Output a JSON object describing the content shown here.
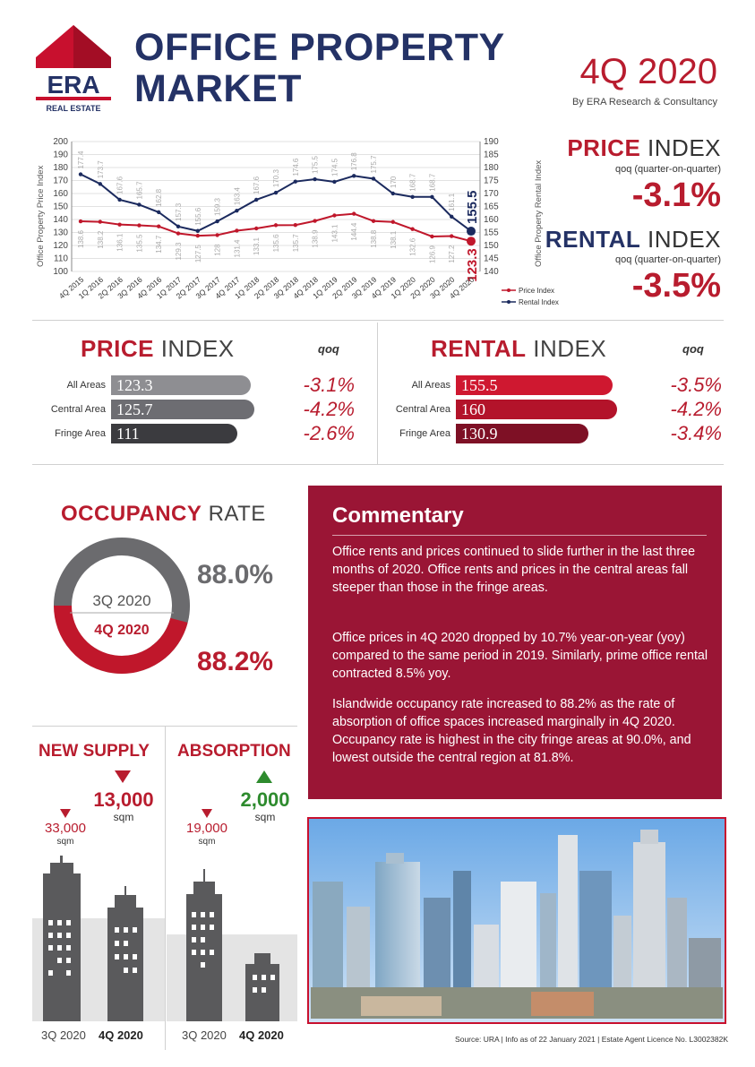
{
  "header": {
    "logo_text": "ERA",
    "logo_subtext": "REAL ESTATE",
    "title_line1": "OFFICE PROPERTY",
    "title_line2": "MARKET",
    "quarter": "4Q 2020",
    "byline": "By ERA Research & Consultancy"
  },
  "summary": {
    "price_head_bold": "PRICE",
    "price_head_rest": " INDEX",
    "price_sub": "qoq (quarter-on-quarter)",
    "price_value": "-3.1%",
    "rental_head_bold": "RENTAL",
    "rental_head_rest": " INDEX",
    "rental_sub": "qoq (quarter-on-quarter)",
    "rental_value": "-3.5%"
  },
  "chart_data": {
    "type": "line",
    "categories": [
      "4Q 2015",
      "1Q 2016",
      "2Q 2016",
      "3Q 2016",
      "4Q 2016",
      "1Q 2017",
      "2Q 2017",
      "3Q 2017",
      "4Q 2017",
      "1Q 2018",
      "2Q 2018",
      "3Q 2018",
      "4Q 2018",
      "1Q 2019",
      "2Q 2019",
      "3Q 2019",
      "4Q 2019",
      "1Q 2020",
      "2Q 2020",
      "3Q 2020",
      "4Q 2020"
    ],
    "series": [
      {
        "name": "Price Index",
        "axis": "left",
        "color": "#c0172b",
        "values": [
          138.6,
          138.2,
          136.1,
          135.5,
          134.7,
          129.3,
          127.5,
          128,
          131.4,
          133.1,
          135.6,
          135.7,
          138.9,
          143.1,
          144.4,
          138.8,
          138.1,
          132.6,
          126.9,
          127.2,
          123.3
        ]
      },
      {
        "name": "Rental Index",
        "axis": "right",
        "color": "#1b2a5e",
        "values": [
          177.4,
          173.7,
          167.6,
          165.7,
          162.8,
          157.3,
          155.6,
          159.3,
          163.4,
          167.6,
          170.3,
          174.6,
          175.5,
          174.5,
          176.8,
          175.7,
          170,
          168.7,
          168.7,
          161.1,
          155.5
        ]
      }
    ],
    "ylabel_left": "Office Property Price Index",
    "ylabel_right": "Office Property Rental Index",
    "ylim_left": [
      100,
      200
    ],
    "ylim_right": [
      140,
      190
    ],
    "yticks_left": [
      "100",
      "110",
      "120",
      "130",
      "140",
      "150",
      "160",
      "170",
      "180",
      "190",
      "200"
    ],
    "yticks_right": [
      "140",
      "145",
      "150",
      "155",
      "160",
      "165",
      "170",
      "175",
      "180",
      "185",
      "190"
    ],
    "legend": [
      "Price Index",
      "Rental Index"
    ],
    "legend_position": "bottom-right",
    "highlight_last": {
      "price": "123.3",
      "rental": "155.5"
    }
  },
  "price_index": {
    "title_bold": "PRICE",
    "title_rest": " INDEX",
    "qoq_label": "qoq",
    "rows": [
      {
        "label": "All Areas",
        "value": "123.3",
        "qoq": "-3.1%",
        "color": "#8e8e92"
      },
      {
        "label": "Central Area",
        "value": "125.7",
        "qoq": "-4.2%",
        "color": "#6d6d72"
      },
      {
        "label": "Fringe Area",
        "value": "111",
        "qoq": "-2.6%",
        "color": "#3b3b3f"
      }
    ]
  },
  "rental_index": {
    "title_bold": "RENTAL",
    "title_rest": " INDEX",
    "qoq_label": "qoq",
    "rows": [
      {
        "label": "All Areas",
        "value": "155.5",
        "qoq": "-3.5%",
        "color": "#cf1830"
      },
      {
        "label": "Central Area",
        "value": "160",
        "qoq": "-4.2%",
        "color": "#b3132a"
      },
      {
        "label": "Fringe Area",
        "value": "130.9",
        "qoq": "-3.4%",
        "color": "#7e1025"
      }
    ]
  },
  "occupancy": {
    "title_bold": "OCCUPANCY",
    "title_rest": " RATE",
    "prev_label": "3Q 2020",
    "curr_label": "4Q 2020",
    "prev_value": "88.0%",
    "curr_value": "88.2%",
    "prev_fraction": 0.88,
    "curr_fraction": 0.882
  },
  "commentary": {
    "title": "Commentary",
    "p1": "Office rents and prices continued to slide further in the last three months of 2020. Office rents and prices in the central areas fall steeper than those in the fringe areas.",
    "p2": "Office prices in 4Q 2020 dropped by 10.7% year-on-year (yoy) compared to the same period in 2019. Similarly, prime office rental contracted 8.5% yoy.",
    "p3": "Islandwide occupancy rate increased to 88.2% as the rate of absorption of office spaces increased marginally in 4Q 2020. Occupancy rate is highest in the city fringe areas at 90.0%, and lowest outside the central region at 81.8%."
  },
  "new_supply": {
    "title": "NEW SUPPLY",
    "prev_value": "33,000",
    "prev_unit": "sqm",
    "curr_value": "13,000",
    "curr_unit": "sqm",
    "prev_caption": "3Q 2020",
    "curr_caption": "4Q 2020"
  },
  "absorption": {
    "title": "ABSORPTION",
    "prev_value": "19,000",
    "prev_unit": "sqm",
    "curr_value": "2,000",
    "curr_unit": "sqm",
    "prev_caption": "3Q 2020",
    "curr_caption": "4Q 2020"
  },
  "footer": {
    "source": "Source: URA | Info as of 22 January 2021 | Estate Agent Licence No. L3002382K"
  },
  "colors": {
    "navy": "#243266",
    "red": "#b81c2e",
    "commentary_bg": "#9a1535",
    "up_arrow": "#2e8b2e"
  }
}
